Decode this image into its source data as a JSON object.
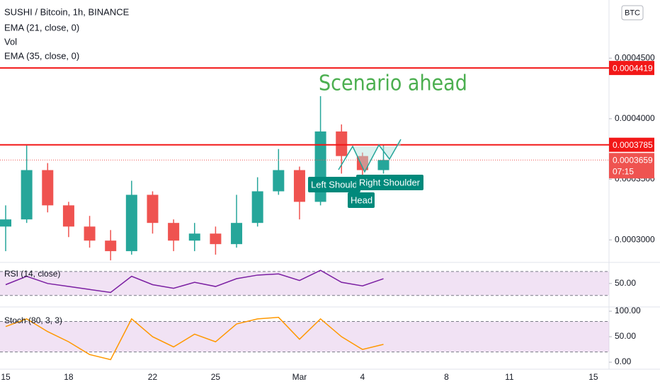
{
  "header": {
    "symbol": "SUSHI / Bitcoin, 1h, BINANCE",
    "indicators": [
      "EMA (21, close, 0)",
      "Vol",
      "EMA (35, close, 0)"
    ],
    "currency_button": "BTC"
  },
  "chart_data": [
    {
      "type": "candlestick",
      "categories": [
        "15",
        null,
        null,
        "18",
        null,
        null,
        null,
        "22",
        null,
        null,
        "25",
        null,
        null,
        null,
        "Mar",
        null,
        null,
        "4",
        null,
        null,
        null,
        "8",
        null,
        null,
        "11",
        null,
        null,
        null,
        "15"
      ],
      "open": [
        0.000311,
        0.0003169,
        0.0003576,
        0.0003285,
        0.000311,
        0.0002994,
        0.0002907,
        0.0003372,
        0.000314,
        0.0002994,
        0.0003052,
        0.0002965,
        0.000314,
        0.0003401,
        0.0003576,
        0.0003314,
        0.0003895,
        0.0003692,
        0.0003576,
        null,
        null,
        null,
        null,
        null,
        null,
        null,
        null,
        null,
        null
      ],
      "high": [
        0.0003285,
        0.0003779,
        0.0003634,
        0.0003314,
        0.0003198,
        0.0003081,
        0.0003488,
        0.0003401,
        0.0003169,
        0.000314,
        0.000311,
        0.0003372,
        0.0003517,
        0.000375,
        0.0003605,
        0.0004186,
        0.0003953,
        0.0003721,
        0.0003779,
        null,
        null,
        null,
        null,
        null,
        null,
        null,
        null,
        null,
        null
      ],
      "low": [
        0.0002907,
        0.000314,
        0.0003227,
        0.0003023,
        0.0002936,
        0.0002831,
        0.0002878,
        0.0003052,
        0.0002907,
        0.0002907,
        0.0002878,
        0.0002936,
        0.000311,
        0.0003372,
        0.0003169,
        0.0003285,
        0.0003547,
        0.0003517,
        0.0003547,
        null,
        null,
        null,
        null,
        null,
        null,
        null,
        null,
        null,
        null
      ],
      "close": [
        0.0003169,
        0.0003576,
        0.0003285,
        0.000311,
        0.0002994,
        0.0002907,
        0.0003372,
        0.000314,
        0.0002994,
        0.0003052,
        0.0002965,
        0.000314,
        0.0003401,
        0.0003576,
        0.0003314,
        0.0003895,
        0.0003692,
        0.0003576,
        0.0003659,
        null,
        null,
        null,
        null,
        null,
        null,
        null,
        null,
        null,
        null
      ],
      "color_up": "#26a69a",
      "color_down": "#ef5350",
      "ylim": [
        0.000282,
        0.000498
      ],
      "yticks": [
        {
          "value": 0.0003,
          "label": "0.0003000"
        },
        {
          "value": 0.00035,
          "label": "0.0003500"
        },
        {
          "value": 0.0004,
          "label": "0.0004000"
        },
        {
          "value": 0.00045,
          "label": "0.0004500"
        }
      ],
      "levels": [
        {
          "value": 0.0004419,
          "color": "#f21818"
        },
        {
          "value": 0.0003785,
          "color": "#f21818"
        }
      ],
      "last_price": {
        "value": 0.0003659,
        "countdown": "07:15",
        "color": "#ef5350"
      },
      "annotations": {
        "title": "Scenario ahead",
        "labels": [
          "Left Shoulder",
          "Right Shoulder",
          "Head"
        ]
      }
    },
    {
      "type": "line",
      "title": "RSI (14, close)",
      "values": [
        48,
        62,
        50,
        45,
        40,
        35,
        62,
        48,
        42,
        52,
        45,
        58,
        64,
        66,
        55,
        72,
        52,
        46,
        58,
        null,
        null,
        null,
        null,
        null,
        null,
        null,
        null,
        null,
        null
      ],
      "color": "#7b1fa2",
      "ylim": [
        12,
        84
      ],
      "yticks": [
        {
          "value": 50,
          "label": "50.00"
        }
      ],
      "band": [
        30,
        70
      ]
    },
    {
      "type": "line",
      "title": "Stoch (80, 3, 3)",
      "values": [
        70,
        85,
        60,
        40,
        15,
        5,
        85,
        50,
        30,
        55,
        40,
        75,
        85,
        88,
        45,
        85,
        50,
        25,
        35,
        null,
        null,
        null,
        null,
        null,
        null,
        null,
        null,
        null,
        null
      ],
      "color": "#ff9800",
      "ylim": [
        -11,
        107
      ],
      "yticks": [
        {
          "value": 100,
          "label": "100.00"
        },
        {
          "value": 50,
          "label": "50.00"
        },
        {
          "value": 0,
          "label": "0.00"
        }
      ],
      "band": [
        20,
        80
      ]
    }
  ]
}
